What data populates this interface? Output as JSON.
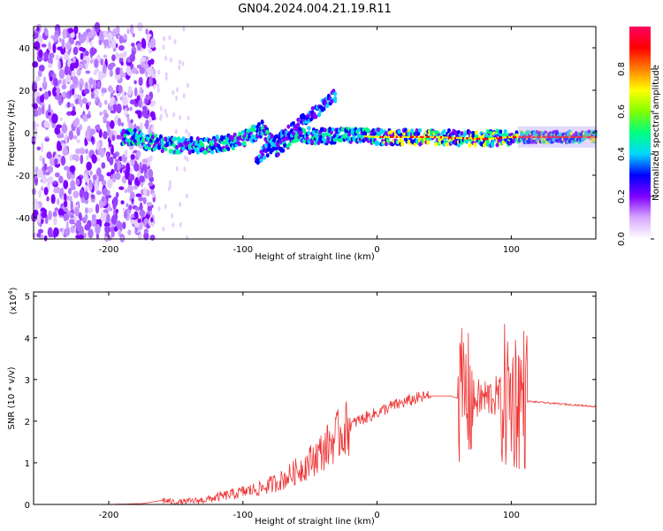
{
  "title": "GN04.2024.004.21.19.R11",
  "chart_data": [
    {
      "type": "heatmap",
      "title": "GN04.2024.004.21.19.R11",
      "xlabel": "Height of straight line (km)",
      "ylabel": "Frequency (Hz)",
      "xlim": [
        -256,
        163
      ],
      "ylim": [
        -50,
        50
      ],
      "xticks": [
        -200,
        -100,
        0,
        100
      ],
      "yticks": [
        -40,
        -20,
        0,
        20,
        40
      ],
      "colorbar": {
        "label": "Normalized spectral amplitude",
        "range": [
          0,
          1
        ],
        "ticks": [
          0.0,
          0.2,
          0.4,
          0.6,
          0.8
        ],
        "colors": [
          "#ffffff",
          "#d8a8ff",
          "#7f00ff",
          "#0000ff",
          "#00d8ff",
          "#00ff80",
          "#80ff00",
          "#ffff00",
          "#ff8000",
          "#ff0000",
          "#ff0060"
        ]
      },
      "track": {
        "x": [
          -175,
          -150,
          -125,
          -100,
          -85,
          -75,
          -60,
          -45,
          -30,
          0,
          40,
          80,
          100,
          163
        ],
        "y": [
          -4,
          -6,
          -6,
          -3,
          2,
          -8,
          0,
          -2,
          -1,
          -2,
          -2,
          -3,
          -2,
          -2
        ]
      }
    },
    {
      "type": "line",
      "xlabel": "Height of straight line (km)",
      "ylabel": "SNR (10 * v/v)",
      "y_multiplier": "(x10",
      "y_multiplier_exp": "4",
      "y_multiplier_close": ")",
      "xlim": [
        -256,
        163
      ],
      "ylim": [
        0,
        5.1
      ],
      "xticks": [
        -200,
        -100,
        0,
        100
      ],
      "yticks": [
        0,
        1,
        2,
        3,
        4,
        5
      ],
      "series": [
        {
          "color": "#ee3333",
          "x": [
            -256,
            -200,
            -175,
            -160,
            -150,
            -130,
            -115,
            -100,
            -85,
            -70,
            -55,
            -40,
            -28,
            -15,
            0,
            10,
            20,
            30,
            40,
            55,
            60,
            65,
            70,
            80,
            90,
            100,
            110,
            111,
            130,
            163
          ],
          "y": [
            0,
            0,
            0.02,
            0.1,
            0.05,
            0.1,
            0.2,
            0.3,
            0.4,
            0.6,
            0.9,
            1.3,
            1.7,
            2.0,
            2.2,
            2.35,
            2.45,
            2.55,
            2.6,
            2.6,
            2.55,
            2.7,
            2.5,
            2.55,
            2.6,
            2.55,
            2.6,
            2.48,
            2.43,
            2.35
          ]
        }
      ]
    }
  ]
}
